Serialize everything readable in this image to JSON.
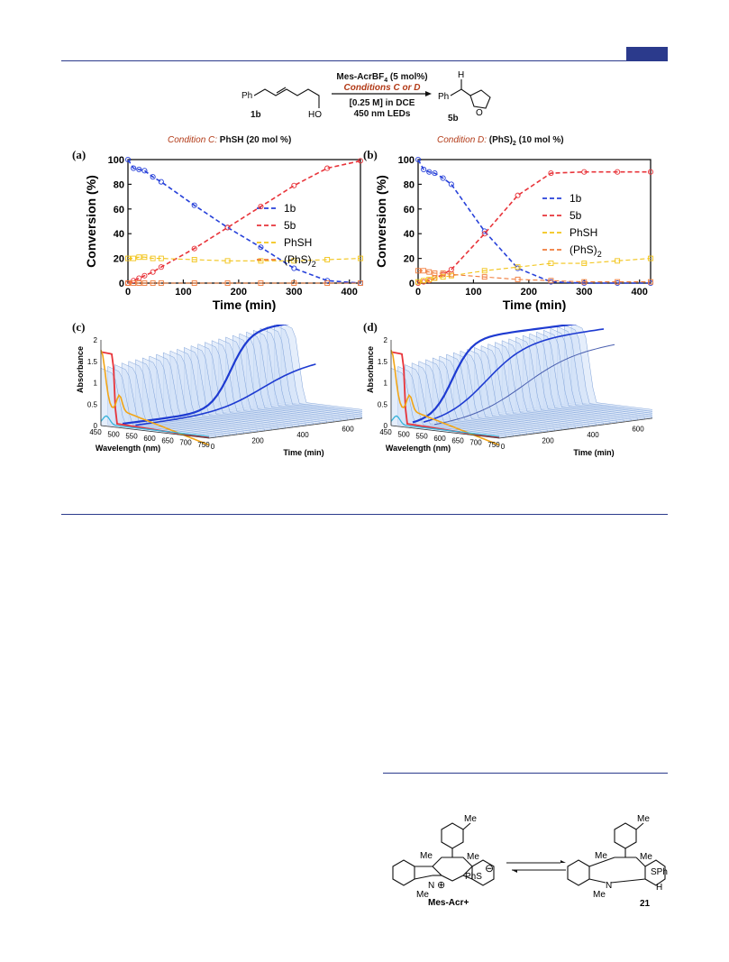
{
  "scheme": {
    "reagent_line1_a": "Mes-AcrBF",
    "reagent_line1_sub": "4",
    "reagent_line1_b": " (5 mol%)",
    "reagent_line2": "Conditions C or D",
    "reagent_line3": "[0.25 M] in DCE",
    "reagent_line4": "450 nm LEDs",
    "sm_label": "1b",
    "sm_ph": "Ph",
    "sm_ho": "HO",
    "prod_label": "5b",
    "prod_ph": "Ph",
    "prod_h": "H",
    "prod_o": "O"
  },
  "conditions": {
    "c_label": "Condition C:",
    "c_reagent": " PhSH (20 mol %)",
    "d_label": "Condition D:",
    "d_reagent_a": " (PhS)",
    "d_reagent_sub": "2",
    "d_reagent_b": " (10 mol %)"
  },
  "panel_labels": {
    "a": "(a)",
    "b": "(b)",
    "c": "(c)",
    "d": "(d)"
  },
  "colors": {
    "blue": "#2741d9",
    "red": "#e8343a",
    "yellow": "#f2c418",
    "orange": "#f07b3a",
    "rule": "#2b3a8c",
    "accent": "#b23a17"
  },
  "chart_data": [
    {
      "type": "line",
      "panel": "a",
      "xlabel": "Time (min)",
      "ylabel": "Conversion (%)",
      "xlim": [
        0,
        420
      ],
      "ylim": [
        0,
        100
      ],
      "xticks": [
        0,
        100,
        200,
        300,
        400
      ],
      "yticks": [
        0,
        20,
        40,
        60,
        80,
        100
      ],
      "legend_position": "right",
      "series": [
        {
          "name": "1b",
          "color": "blue",
          "marker": "circle",
          "points": [
            [
              0,
              100
            ],
            [
              10,
              93
            ],
            [
              20,
              92
            ],
            [
              30,
              91
            ],
            [
              45,
              86
            ],
            [
              60,
              82
            ],
            [
              120,
              63
            ],
            [
              180,
              45
            ],
            [
              240,
              29
            ],
            [
              300,
              12
            ],
            [
              360,
              2
            ],
            [
              420,
              0
            ]
          ]
        },
        {
          "name": "5b",
          "color": "red",
          "marker": "circle",
          "points": [
            [
              0,
              0
            ],
            [
              10,
              2
            ],
            [
              20,
              4
            ],
            [
              30,
              6
            ],
            [
              45,
              9
            ],
            [
              60,
              13
            ],
            [
              120,
              28
            ],
            [
              180,
              45
            ],
            [
              240,
              62
            ],
            [
              300,
              79
            ],
            [
              360,
              93
            ],
            [
              420,
              99
            ]
          ]
        },
        {
          "name": "PhSH",
          "color": "yellow",
          "marker": "square",
          "points": [
            [
              0,
              20
            ],
            [
              10,
              20
            ],
            [
              20,
              21
            ],
            [
              30,
              21
            ],
            [
              45,
              20
            ],
            [
              60,
              20
            ],
            [
              120,
              19
            ],
            [
              180,
              18
            ],
            [
              240,
              18
            ],
            [
              300,
              18
            ],
            [
              360,
              19
            ],
            [
              420,
              20
            ]
          ]
        },
        {
          "name": "(PhS)",
          "name_sub": "2",
          "color": "orange",
          "marker": "square",
          "points": [
            [
              0,
              0
            ],
            [
              10,
              0
            ],
            [
              20,
              0
            ],
            [
              30,
              0
            ],
            [
              45,
              0
            ],
            [
              60,
              0
            ],
            [
              120,
              0
            ],
            [
              180,
              0
            ],
            [
              240,
              0
            ],
            [
              300,
              0
            ],
            [
              360,
              0
            ],
            [
              420,
              0
            ]
          ]
        }
      ]
    },
    {
      "type": "line",
      "panel": "b",
      "xlabel": "Time (min)",
      "ylabel": "Conversion (%)",
      "xlim": [
        0,
        420
      ],
      "ylim": [
        0,
        100
      ],
      "xticks": [
        0,
        100,
        200,
        300,
        400
      ],
      "yticks": [
        0,
        20,
        40,
        60,
        80,
        100
      ],
      "legend_position": "right",
      "series": [
        {
          "name": "1b",
          "color": "blue",
          "marker": "circle",
          "points": [
            [
              0,
              100
            ],
            [
              10,
              92
            ],
            [
              20,
              90
            ],
            [
              30,
              89
            ],
            [
              45,
              85
            ],
            [
              60,
              80
            ],
            [
              120,
              42
            ],
            [
              180,
              12
            ],
            [
              240,
              1
            ],
            [
              300,
              0
            ],
            [
              360,
              0
            ],
            [
              420,
              0
            ]
          ]
        },
        {
          "name": "5b",
          "color": "red",
          "marker": "circle",
          "points": [
            [
              0,
              0
            ],
            [
              10,
              1
            ],
            [
              20,
              2
            ],
            [
              30,
              4
            ],
            [
              45,
              7
            ],
            [
              60,
              11
            ],
            [
              120,
              40
            ],
            [
              180,
              71
            ],
            [
              240,
              89
            ],
            [
              300,
              90
            ],
            [
              360,
              90
            ],
            [
              420,
              90
            ]
          ]
        },
        {
          "name": "PhSH",
          "color": "yellow",
          "marker": "square",
          "points": [
            [
              0,
              1
            ],
            [
              10,
              2
            ],
            [
              20,
              3
            ],
            [
              30,
              4
            ],
            [
              45,
              5
            ],
            [
              60,
              6
            ],
            [
              120,
              10
            ],
            [
              180,
              13
            ],
            [
              240,
              16
            ],
            [
              300,
              16
            ],
            [
              360,
              18
            ],
            [
              420,
              20
            ]
          ]
        },
        {
          "name": "(PhS)",
          "name_sub": "2",
          "color": "orange",
          "marker": "square",
          "points": [
            [
              0,
              10
            ],
            [
              10,
              10
            ],
            [
              20,
              9
            ],
            [
              30,
              8
            ],
            [
              45,
              8
            ],
            [
              60,
              7
            ],
            [
              120,
              5
            ],
            [
              180,
              3
            ],
            [
              240,
              2
            ],
            [
              300,
              1
            ],
            [
              360,
              1
            ],
            [
              420,
              1
            ]
          ]
        }
      ]
    },
    {
      "type": "area",
      "panel": "c",
      "ylabel": "Absorbance",
      "xlabel": "Wavelength (nm)",
      "zlabel": "Time (min)",
      "yticks": [
        "0",
        "0.5",
        "1",
        "1.5",
        "2"
      ],
      "wavelength_ticks": [
        "450",
        "500",
        "550",
        "600",
        "650",
        "700",
        "750"
      ],
      "time_ticks": [
        "0",
        "200",
        "400",
        "600",
        "800"
      ]
    },
    {
      "type": "area",
      "panel": "d",
      "ylabel": "Absorbance",
      "xlabel": "Wavelength (nm)",
      "zlabel": "Time (min)",
      "yticks": [
        "0",
        "0.5",
        "1",
        "1.5",
        "2"
      ],
      "wavelength_ticks": [
        "450",
        "500",
        "550",
        "600",
        "650",
        "700",
        "750"
      ],
      "time_ticks": [
        "0",
        "200",
        "400",
        "600",
        "800"
      ]
    }
  ],
  "bottom_scheme": {
    "me": "Me",
    "n": "N",
    "plus": "⊕",
    "cation_label": "Mes-Acr+",
    "anion": "PhS",
    "minus": "⊖",
    "sph": "SPh",
    "h": "H",
    "adduct_label": "21"
  }
}
